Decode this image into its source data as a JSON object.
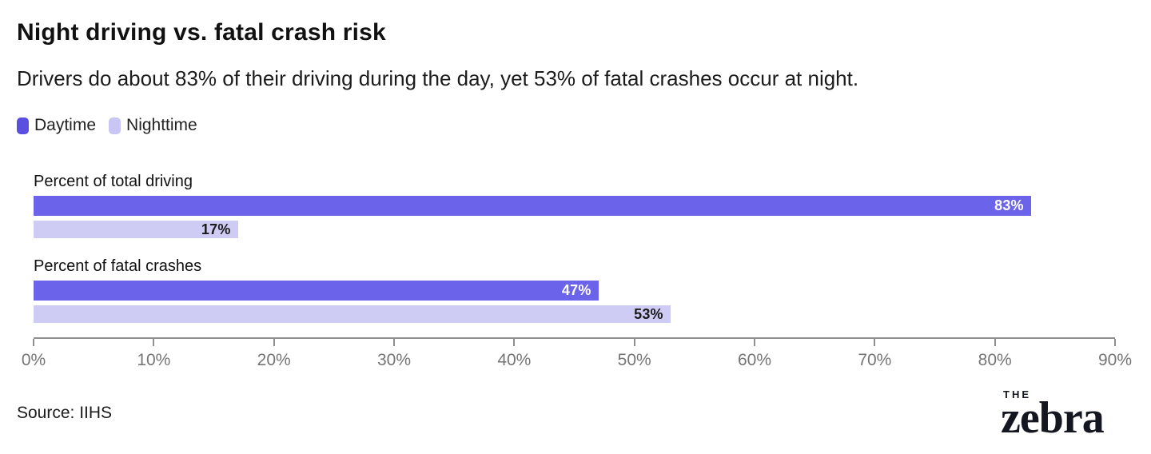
{
  "header": {
    "title": "Night driving vs. fatal crash risk",
    "subtitle": "Drivers do about 83% of their driving during the day, yet 53% of fatal crashes occur at night."
  },
  "legend": [
    {
      "label": "Daytime",
      "color": "#5a50e0"
    },
    {
      "label": "Nighttime",
      "color": "#c9c6f4"
    }
  ],
  "chart_data": {
    "type": "bar",
    "orientation": "horizontal",
    "title": "Night driving vs. fatal crash risk",
    "subtitle": "Drivers do about 83% of their driving during the day, yet 53% of fatal crashes occur at night.",
    "categories": [
      "Percent of total driving",
      "Percent of fatal crashes"
    ],
    "series": [
      {
        "name": "Daytime",
        "values": [
          83,
          47
        ],
        "color": "#6b63ea",
        "label_color": "#ffffff"
      },
      {
        "name": "Nighttime",
        "values": [
          17,
          53
        ],
        "color": "#cecbf4",
        "label_color": "#1a1a1a"
      }
    ],
    "value_labels": [
      [
        "83%",
        "17%"
      ],
      [
        "47%",
        "53%"
      ]
    ],
    "xlabel": "",
    "ylabel": "",
    "axis": {
      "min": 0,
      "max": 90,
      "unit": "%",
      "ticks": [
        "0%",
        "10%",
        "20%",
        "30%",
        "40%",
        "50%",
        "60%",
        "70%",
        "80%",
        "90%"
      ],
      "tick_values": [
        0,
        10,
        20,
        30,
        40,
        50,
        60,
        70,
        80,
        90
      ]
    },
    "grid": false,
    "legend_position": "top-left"
  },
  "footer": {
    "source": "Source: IIHS",
    "logo": {
      "the": "THE",
      "zebra": "zebra"
    }
  }
}
